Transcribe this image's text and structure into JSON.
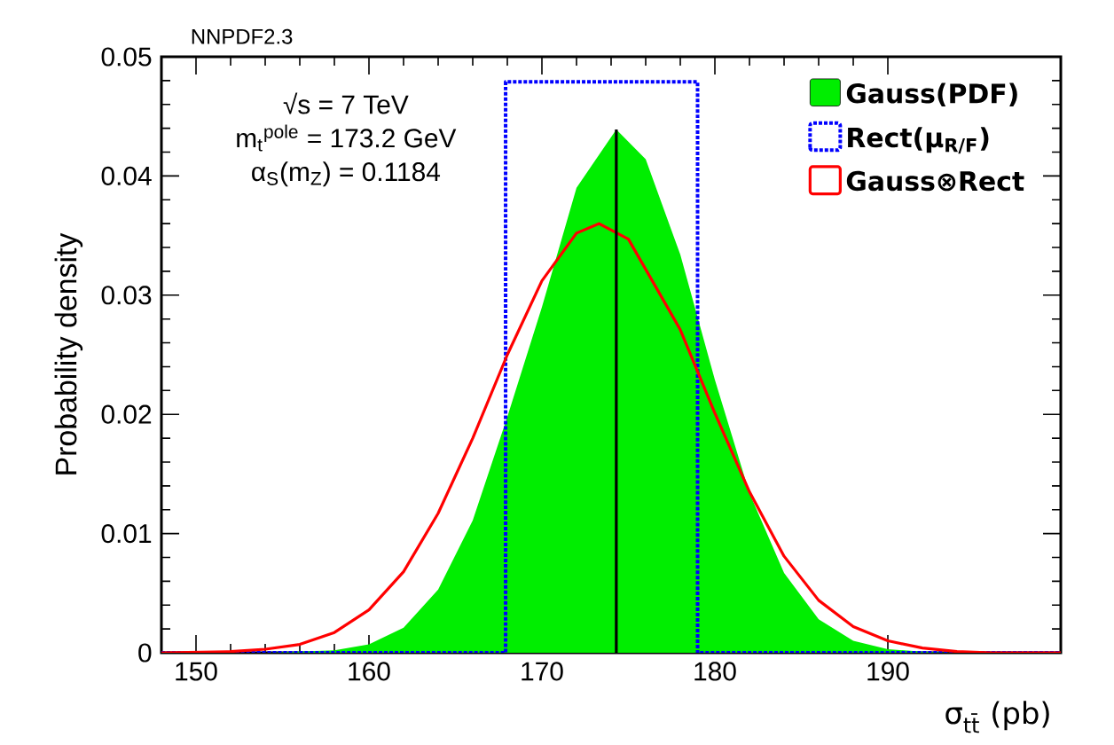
{
  "chart_data": {
    "type": "line",
    "title": "NNPDF2.3",
    "xlabel": "σ$_{tt̄}$ (pb)",
    "ylabel": "Probability density",
    "annotations": [
      "√s = 7 TeV",
      "m$_{t}$$^{pole}$ = 173.2 GeV",
      "α$_{S}$(m$_{Z}$) = 0.1184"
    ],
    "xlim": [
      148,
      200
    ],
    "ylim": [
      0,
      0.05
    ],
    "xticks": [
      150,
      160,
      170,
      180,
      190
    ],
    "yticks": [
      0,
      0.01,
      0.02,
      0.03,
      0.04,
      0.05
    ],
    "legend": "top right",
    "series": [
      {
        "type": "area",
        "name": "Gauss(PDF)",
        "color": "#00ee00",
        "x": [
          148,
          154,
          156,
          158,
          160,
          162,
          164,
          166,
          168,
          170,
          172,
          174.3,
          176,
          178,
          180,
          182,
          184,
          186,
          188,
          190,
          192,
          194,
          200
        ],
        "values": [
          0,
          0,
          0.0001,
          0.0002,
          0.0007,
          0.0021,
          0.0053,
          0.0111,
          0.0198,
          0.029,
          0.039,
          0.0439,
          0.0414,
          0.0334,
          0.0229,
          0.0134,
          0.0067,
          0.0028,
          0.001,
          0.0003,
          0.0001,
          0,
          0
        ]
      },
      {
        "name": "Rect(μ$_{R/F}$)",
        "color": "#0000ff",
        "line_style": "dotted",
        "x": [
          148,
          167.9,
          167.9,
          179.0,
          179.0,
          200
        ],
        "values": [
          0,
          0,
          0.0479,
          0.0479,
          0,
          0
        ]
      },
      {
        "name": "Gauss⊗Rect",
        "color": "#ff0000",
        "x": [
          148,
          152,
          154,
          156,
          158,
          160,
          162,
          164,
          166,
          168,
          170,
          172,
          173.3,
          175,
          178,
          180,
          182,
          184,
          186,
          188,
          190,
          192,
          194,
          196,
          200
        ],
        "values": [
          0,
          0.0001,
          0.0003,
          0.0007,
          0.0017,
          0.0036,
          0.0068,
          0.0117,
          0.018,
          0.025,
          0.0312,
          0.0352,
          0.036,
          0.0347,
          0.0271,
          0.0201,
          0.0135,
          0.0081,
          0.0044,
          0.0022,
          0.001,
          0.0004,
          0.0001,
          0,
          0
        ]
      },
      {
        "color": "#000000",
        "x": [
          174.3,
          174.3
        ],
        "values": [
          0,
          0.0439
        ]
      }
    ]
  }
}
